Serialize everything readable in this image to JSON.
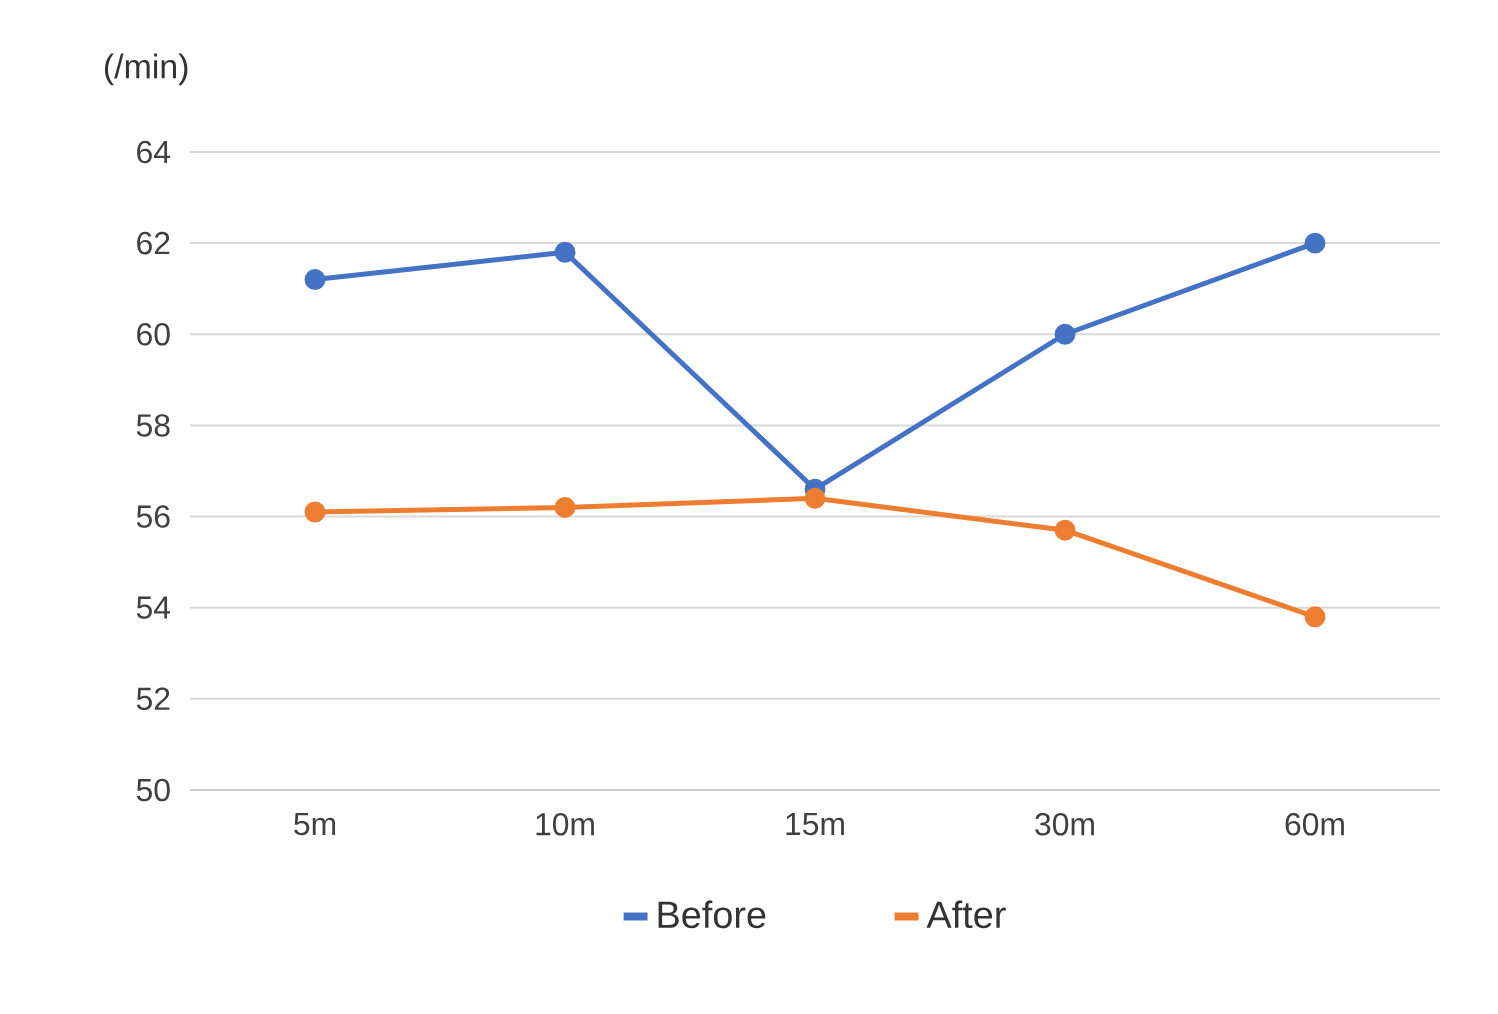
{
  "chart_data": {
    "type": "line",
    "ylabel": "(/min)",
    "categories": [
      "5m",
      "10m",
      "15m",
      "30m",
      "60m"
    ],
    "series": [
      {
        "name": "Before",
        "color": "#4472c4",
        "values": [
          61.2,
          61.8,
          56.6,
          60.0,
          62.0
        ]
      },
      {
        "name": "After",
        "color": "#ed7d31",
        "values": [
          56.1,
          56.2,
          56.4,
          55.7,
          53.8
        ]
      }
    ],
    "ylim": [
      50,
      64
    ],
    "yticks": [
      50,
      52,
      54,
      56,
      58,
      60,
      62,
      64
    ],
    "grid": "y",
    "legend": "bottom",
    "marker": "circle",
    "line_style": "solid"
  }
}
